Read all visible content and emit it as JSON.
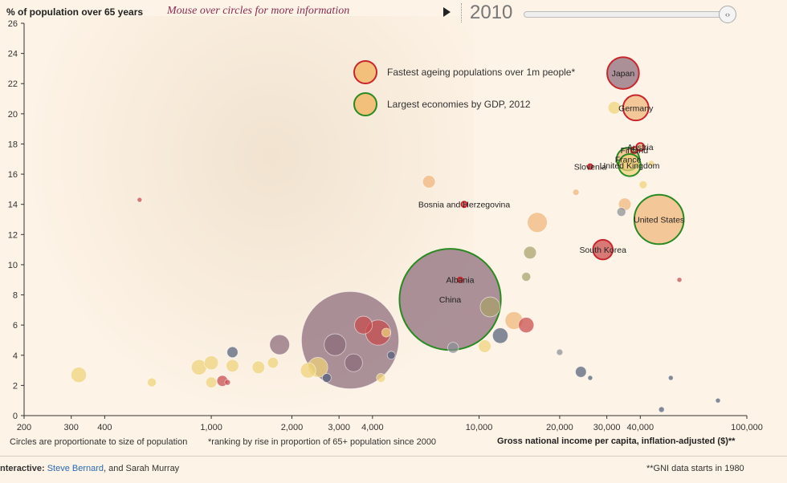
{
  "header": {
    "y_axis_title": "% of population over 65 years",
    "hint": "Mouse over circles for more information",
    "year": "2010",
    "slider_glyph": "‹›"
  },
  "legend": [
    {
      "label": "Fastest ageing populations over 1m people*",
      "ring": "#c9262c"
    },
    {
      "label": "Largest economies by GDP, 2012",
      "ring": "#2a8a22"
    }
  ],
  "footer": {
    "note1": "Circles are proportionate to size of population",
    "note2": "*ranking by rise in proportion of 65+ population since 2000",
    "x_axis_title": "Gross national income per capita, inflation-adjusted ($)**",
    "credits_label": "nteractive:",
    "credits_link": "Steve Bernard",
    "credits_rest": ", and Sarah Murray",
    "gni_note": "**GNI data starts in 1980"
  },
  "colors": {
    "tan": "#f0b67a",
    "yellow": "#efd27a",
    "mauve": "#8a6a78",
    "red": "#c84b4b",
    "olive": "#a8a06a",
    "gray": "#8a8f95",
    "navy": "#55607a",
    "teal": "#6a98b0"
  },
  "chart_data": {
    "type": "scatter",
    "title": "% of population over 65 years",
    "xlabel": "Gross national income per capita, inflation-adjusted ($)**",
    "ylabel": "% of population over 65 years",
    "x_scale": "log",
    "xlim": [
      200,
      100000
    ],
    "ylim": [
      0,
      26
    ],
    "x_ticks": [
      200,
      300,
      400,
      1000,
      2000,
      3000,
      4000,
      10000,
      20000,
      30000,
      40000,
      100000
    ],
    "x_tick_labels": [
      "200",
      "300",
      "400",
      "1,000",
      "2,000",
      "3,000",
      "4,000",
      "10,000",
      "20,000",
      "30,000",
      "40,000",
      "100,000"
    ],
    "y_ticks": [
      0,
      2,
      4,
      6,
      8,
      10,
      12,
      14,
      16,
      18,
      20,
      22,
      24,
      26
    ],
    "points": [
      {
        "x": 7800,
        "y": 7.7,
        "pop": 1300,
        "color": "mauve",
        "ring": "green",
        "label": "China"
      },
      {
        "x": 3300,
        "y": 5.0,
        "pop": 1200,
        "color": "mauve",
        "label": ""
      },
      {
        "x": 47000,
        "y": 13.0,
        "pop": 310,
        "color": "tan",
        "ring": "green",
        "label": "United States"
      },
      {
        "x": 34500,
        "y": 22.7,
        "pop": 128,
        "color": "mauve",
        "ring": "red",
        "label": "Japan"
      },
      {
        "x": 38500,
        "y": 20.4,
        "pop": 82,
        "color": "tan",
        "ring": "red",
        "label": "Germany"
      },
      {
        "x": 36500,
        "y": 16.6,
        "pop": 62,
        "color": "yellow",
        "ring": "green",
        "label": "United Kingdom"
      },
      {
        "x": 36000,
        "y": 17.0,
        "pop": 65,
        "color": "tan",
        "ring": "green",
        "label": "France"
      },
      {
        "x": 38000,
        "y": 17.6,
        "pop": 5,
        "color": "tan",
        "ring": "red",
        "label": "Finland"
      },
      {
        "x": 40000,
        "y": 17.8,
        "pop": 8,
        "color": "tan",
        "ring": "red",
        "label": "Austria"
      },
      {
        "x": 26000,
        "y": 16.5,
        "pop": 2,
        "color": "red",
        "ring": "red",
        "label": "Slovenia"
      },
      {
        "x": 29000,
        "y": 11.0,
        "pop": 49,
        "color": "red",
        "ring": "red",
        "label": "South Korea"
      },
      {
        "x": 8500,
        "y": 9.0,
        "pop": 3,
        "color": "red",
        "ring": "red",
        "label": "Albania"
      },
      {
        "x": 8800,
        "y": 14.0,
        "pop": 4,
        "color": "red",
        "ring": "red",
        "label": "Bosnia and Herzegovina"
      },
      {
        "x": 3700,
        "y": 6.0,
        "pop": 40,
        "color": "red",
        "label": ""
      },
      {
        "x": 4200,
        "y": 5.5,
        "pop": 80,
        "color": "red",
        "label": ""
      },
      {
        "x": 3400,
        "y": 3.5,
        "pop": 40,
        "color": "mauve",
        "label": ""
      },
      {
        "x": 2900,
        "y": 4.7,
        "pop": 60,
        "color": "mauve",
        "label": ""
      },
      {
        "x": 1800,
        "y": 4.7,
        "pop": 50,
        "color": "mauve",
        "label": ""
      },
      {
        "x": 11000,
        "y": 7.2,
        "pop": 50,
        "color": "olive",
        "label": ""
      },
      {
        "x": 13500,
        "y": 6.3,
        "pop": 40,
        "color": "tan",
        "label": ""
      },
      {
        "x": 15000,
        "y": 6.0,
        "pop": 30,
        "color": "red",
        "label": ""
      },
      {
        "x": 12000,
        "y": 5.3,
        "pop": 30,
        "color": "navy",
        "label": ""
      },
      {
        "x": 10500,
        "y": 4.6,
        "pop": 20,
        "color": "yellow",
        "label": ""
      },
      {
        "x": 16500,
        "y": 12.8,
        "pop": 50,
        "color": "tan",
        "label": ""
      },
      {
        "x": 15500,
        "y": 10.8,
        "pop": 20,
        "color": "olive",
        "label": ""
      },
      {
        "x": 15000,
        "y": 9.2,
        "pop": 10,
        "color": "olive",
        "label": ""
      },
      {
        "x": 6500,
        "y": 15.5,
        "pop": 20,
        "color": "tan",
        "label": ""
      },
      {
        "x": 8000,
        "y": 4.5,
        "pop": 15,
        "color": "gray",
        "label": ""
      },
      {
        "x": 2500,
        "y": 3.2,
        "pop": 50,
        "color": "yellow",
        "label": ""
      },
      {
        "x": 2300,
        "y": 3.0,
        "pop": 30,
        "color": "yellow",
        "label": ""
      },
      {
        "x": 4500,
        "y": 5.5,
        "pop": 10,
        "color": "yellow",
        "label": ""
      },
      {
        "x": 320,
        "y": 2.7,
        "pop": 30,
        "color": "yellow",
        "label": ""
      },
      {
        "x": 900,
        "y": 3.2,
        "pop": 30,
        "color": "yellow",
        "label": ""
      },
      {
        "x": 1000,
        "y": 3.5,
        "pop": 25,
        "color": "yellow",
        "label": ""
      },
      {
        "x": 1200,
        "y": 3.3,
        "pop": 20,
        "color": "yellow",
        "label": ""
      },
      {
        "x": 1500,
        "y": 3.2,
        "pop": 20,
        "color": "yellow",
        "label": ""
      },
      {
        "x": 1700,
        "y": 3.5,
        "pop": 15,
        "color": "yellow",
        "label": ""
      },
      {
        "x": 1000,
        "y": 2.2,
        "pop": 15,
        "color": "yellow",
        "label": ""
      },
      {
        "x": 600,
        "y": 2.2,
        "pop": 10,
        "color": "yellow",
        "label": ""
      },
      {
        "x": 1200,
        "y": 4.2,
        "pop": 15,
        "color": "navy",
        "label": ""
      },
      {
        "x": 1100,
        "y": 2.3,
        "pop": 15,
        "color": "red",
        "label": ""
      },
      {
        "x": 2700,
        "y": 2.5,
        "pop": 10,
        "color": "navy",
        "label": ""
      },
      {
        "x": 4300,
        "y": 2.5,
        "pop": 10,
        "color": "yellow",
        "label": ""
      },
      {
        "x": 4700,
        "y": 4.0,
        "pop": 8,
        "color": "navy",
        "label": ""
      },
      {
        "x": 20000,
        "y": 4.2,
        "pop": 5,
        "color": "gray",
        "label": ""
      },
      {
        "x": 24000,
        "y": 2.9,
        "pop": 15,
        "color": "navy",
        "label": ""
      },
      {
        "x": 34000,
        "y": 13.5,
        "pop": 10,
        "color": "gray",
        "label": ""
      },
      {
        "x": 35000,
        "y": 14.0,
        "pop": 20,
        "color": "tan",
        "label": ""
      },
      {
        "x": 32000,
        "y": 20.4,
        "pop": 20,
        "color": "yellow",
        "label": ""
      },
      {
        "x": 44000,
        "y": 16.7,
        "pop": 5,
        "color": "yellow",
        "label": ""
      },
      {
        "x": 41000,
        "y": 15.3,
        "pop": 8,
        "color": "yellow",
        "label": ""
      },
      {
        "x": 23000,
        "y": 14.8,
        "pop": 5,
        "color": "tan",
        "label": ""
      },
      {
        "x": 56000,
        "y": 9.0,
        "pop": 3,
        "color": "red",
        "label": ""
      },
      {
        "x": 48000,
        "y": 0.4,
        "pop": 4,
        "color": "navy",
        "label": ""
      },
      {
        "x": 78000,
        "y": 1.0,
        "pop": 2,
        "color": "navy",
        "label": ""
      },
      {
        "x": 52000,
        "y": 2.5,
        "pop": 2,
        "color": "navy",
        "label": ""
      },
      {
        "x": 26000,
        "y": 2.5,
        "pop": 2,
        "color": "navy",
        "label": ""
      },
      {
        "x": 540,
        "y": 14.3,
        "pop": 2,
        "color": "red",
        "label": ""
      },
      {
        "x": 1150,
        "y": 2.2,
        "pop": 4,
        "color": "red",
        "label": ""
      }
    ]
  }
}
